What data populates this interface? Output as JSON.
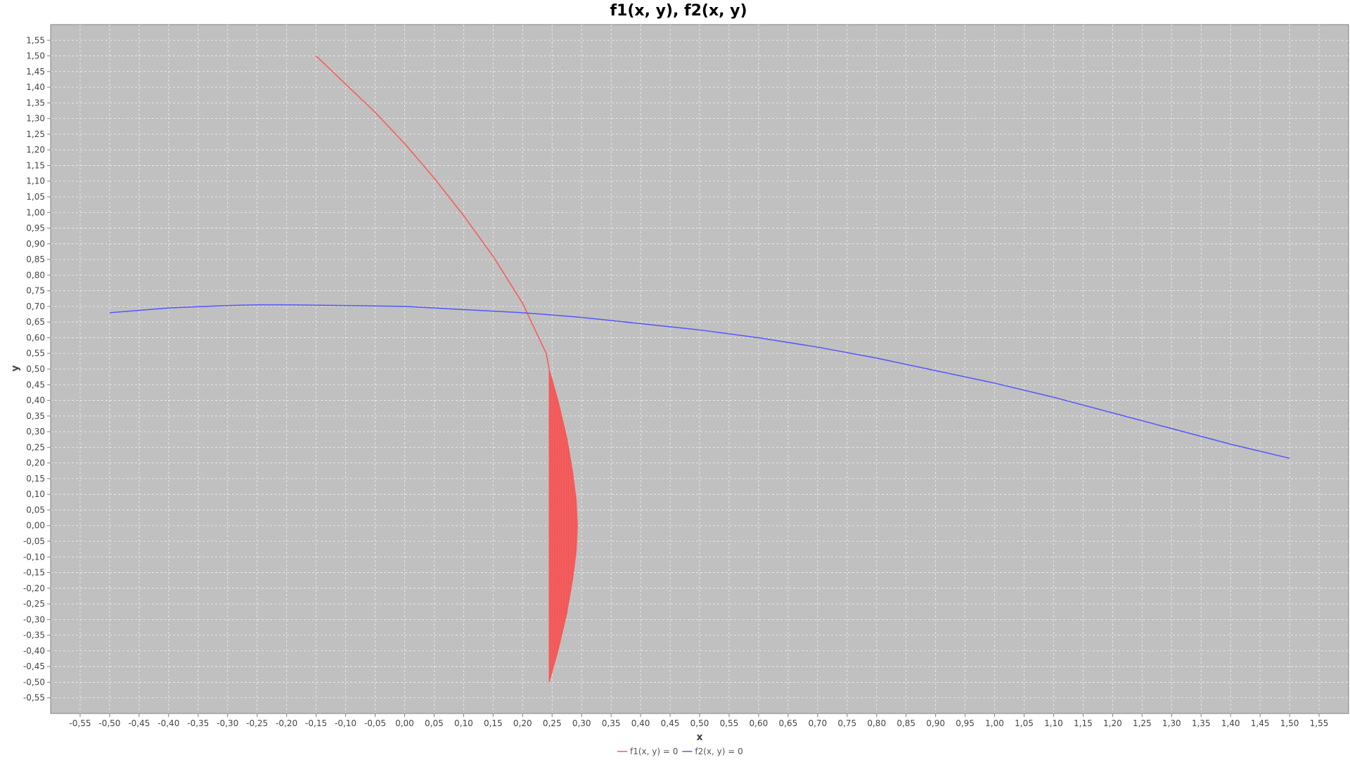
{
  "chart_data": {
    "type": "line",
    "title": "f1(x, y), f2(x, y)",
    "xlabel": "x",
    "ylabel": "y",
    "xlim": [
      -0.6,
      1.6
    ],
    "ylim": [
      -0.6,
      1.6
    ],
    "x_ticks": [
      -0.55,
      -0.5,
      -0.45,
      -0.4,
      -0.35,
      -0.3,
      -0.25,
      -0.2,
      -0.15,
      -0.1,
      -0.05,
      0.0,
      0.05,
      0.1,
      0.15,
      0.2,
      0.25,
      0.3,
      0.35,
      0.4,
      0.45,
      0.5,
      0.55,
      0.6,
      0.65,
      0.7,
      0.75,
      0.8,
      0.85,
      0.9,
      0.95,
      1.0,
      1.05,
      1.1,
      1.15,
      1.2,
      1.25,
      1.3,
      1.35,
      1.4,
      1.45,
      1.5,
      1.55
    ],
    "y_ticks": [
      -0.55,
      -0.5,
      -0.45,
      -0.4,
      -0.35,
      -0.3,
      -0.25,
      -0.2,
      -0.15,
      -0.1,
      -0.05,
      0.0,
      0.05,
      0.1,
      0.15,
      0.2,
      0.25,
      0.3,
      0.35,
      0.4,
      0.45,
      0.5,
      0.55,
      0.6,
      0.65,
      0.7,
      0.75,
      0.8,
      0.85,
      0.9,
      0.95,
      1.0,
      1.05,
      1.1,
      1.15,
      1.2,
      1.25,
      1.3,
      1.35,
      1.4,
      1.45,
      1.5,
      1.55
    ],
    "tick_decimal_separator": ",",
    "grid": true,
    "legend_position": "bottom-center",
    "background_color": "#c0c0c0",
    "series": [
      {
        "name": "f1(x, y) = 0",
        "color": "#ff5555",
        "style": "curve-with-vertical-hatched-fill",
        "x": [
          -0.15,
          -0.1,
          -0.05,
          0.0,
          0.05,
          0.1,
          0.15,
          0.2,
          0.21,
          0.24,
          0.245
        ],
        "y": [
          1.5,
          1.41,
          1.32,
          1.22,
          1.11,
          0.99,
          0.86,
          0.71,
          0.67,
          0.55,
          0.5
        ],
        "fill_region": {
          "x_min": 0.245,
          "x_max": 0.293,
          "y_min": -0.5,
          "y_max": 0.5,
          "right_edge_x": [
            0.245,
            0.26,
            0.275,
            0.285,
            0.291,
            0.293,
            0.291,
            0.285,
            0.275,
            0.26,
            0.245
          ],
          "right_edge_y": [
            0.5,
            0.4,
            0.28,
            0.17,
            0.08,
            0.0,
            -0.08,
            -0.17,
            -0.28,
            -0.4,
            -0.5
          ]
        }
      },
      {
        "name": "f2(x, y) = 0",
        "color": "#5555ff",
        "style": "line",
        "x": [
          -0.5,
          -0.4,
          -0.3,
          -0.25,
          -0.2,
          -0.1,
          0.0,
          0.1,
          0.2,
          0.3,
          0.4,
          0.5,
          0.6,
          0.7,
          0.8,
          0.9,
          1.0,
          1.1,
          1.2,
          1.3,
          1.4,
          1.5
        ],
        "y": [
          0.68,
          0.695,
          0.703,
          0.705,
          0.705,
          0.703,
          0.7,
          0.69,
          0.68,
          0.665,
          0.645,
          0.625,
          0.6,
          0.57,
          0.535,
          0.495,
          0.455,
          0.41,
          0.36,
          0.31,
          0.26,
          0.215
        ]
      }
    ]
  }
}
